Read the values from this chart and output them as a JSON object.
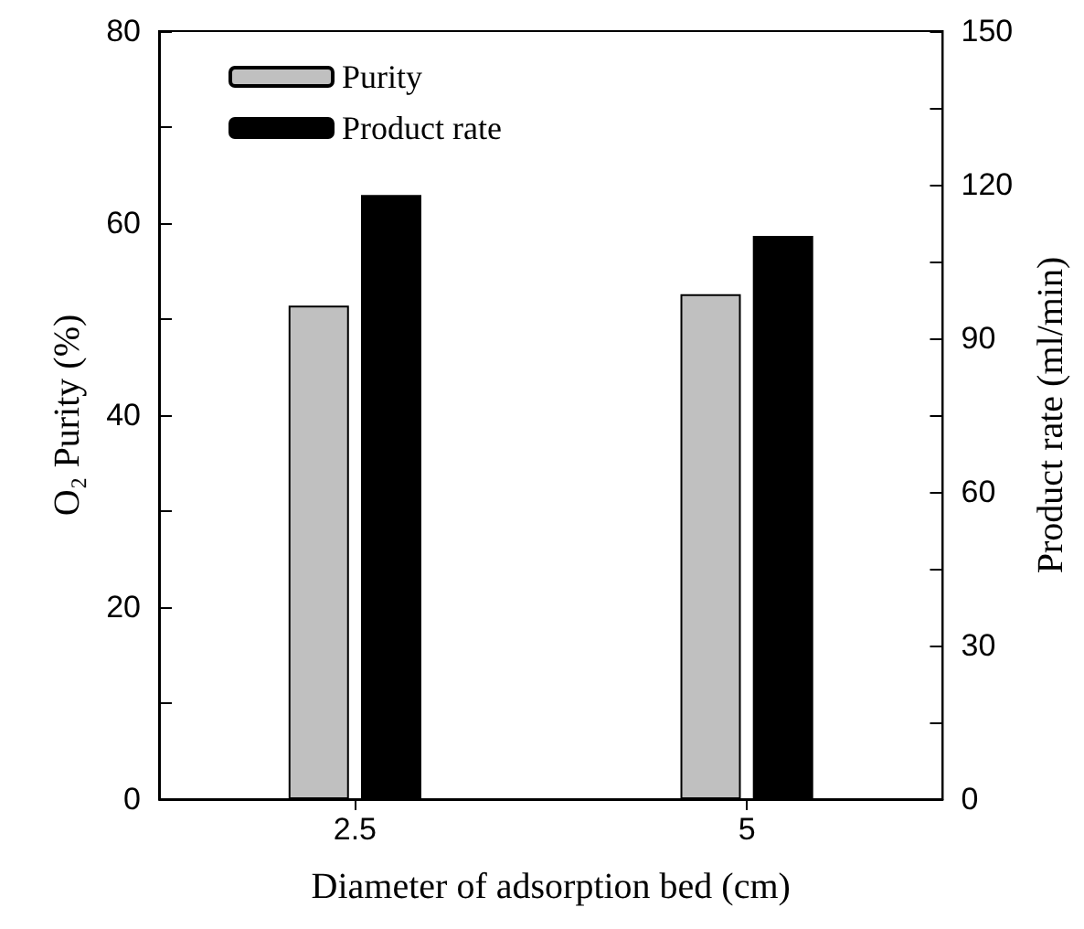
{
  "chart_data": {
    "type": "bar",
    "xlabel": "Diameter of adsorption bed (cm)",
    "ylabel": "O₂ Purity (%)",
    "y2label": "Product rate (ml/min)",
    "categories": [
      "2.5",
      "5"
    ],
    "series": [
      {
        "name": "Purity",
        "color": "#c0c0c0",
        "values": [
          51.4,
          52.6
        ]
      },
      {
        "name": "Product rate",
        "color": "#000000",
        "values": [
          118,
          110
        ],
        "axis": "y2"
      }
    ],
    "ylim": [
      0,
      80
    ],
    "yticks": [
      0,
      {
        "value": 10,
        "label": null
      },
      20,
      {
        "value": 30,
        "label": null
      },
      40,
      {
        "value": 50,
        "label": null
      },
      60,
      {
        "value": 70,
        "label": null
      },
      80
    ],
    "y2lim": [
      0,
      150
    ],
    "y2ticks": [
      0,
      {
        "value": 15,
        "label": null
      },
      30,
      {
        "value": 45,
        "label": null
      },
      60,
      {
        "value": 75,
        "label": null
      },
      90,
      {
        "value": 105,
        "label": null
      },
      120,
      {
        "value": 135,
        "label": null
      },
      150
    ],
    "grid": false,
    "legend": "top left"
  }
}
